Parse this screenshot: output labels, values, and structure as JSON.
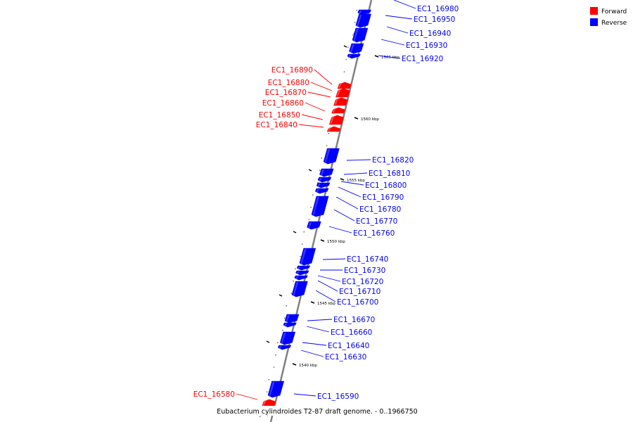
{
  "colors": {
    "forward": "#ff0000",
    "reverse": "#0000ff",
    "axis": "#808080"
  },
  "legend": {
    "forward_label": "Forward",
    "reverse_label": "Reverse"
  },
  "caption": "Eubacterium cylindroides T2-87 draft genome. - 0..1966750",
  "ticks": [
    {
      "label": "1565 kbp",
      "kbp": 1565
    },
    {
      "label": "1560 kbp",
      "kbp": 1560
    },
    {
      "label": "1555 kbp",
      "kbp": 1555
    },
    {
      "label": "1550 kbp",
      "kbp": 1550
    },
    {
      "label": "1545 kbp",
      "kbp": 1545
    },
    {
      "label": "1540 kbp",
      "kbp": 1540
    }
  ],
  "genes": [
    {
      "id": "EC1_16980",
      "strand": "reverse"
    },
    {
      "id": "EC1_16950",
      "strand": "reverse"
    },
    {
      "id": "EC1_16940",
      "strand": "reverse"
    },
    {
      "id": "EC1_16930",
      "strand": "reverse"
    },
    {
      "id": "EC1_16920",
      "strand": "reverse"
    },
    {
      "id": "EC1_16890",
      "strand": "forward"
    },
    {
      "id": "EC1_16880",
      "strand": "forward"
    },
    {
      "id": "EC1_16870",
      "strand": "forward"
    },
    {
      "id": "EC1_16860",
      "strand": "forward"
    },
    {
      "id": "EC1_16850",
      "strand": "forward"
    },
    {
      "id": "EC1_16840",
      "strand": "forward"
    },
    {
      "id": "EC1_16820",
      "strand": "reverse"
    },
    {
      "id": "EC1_16810",
      "strand": "reverse"
    },
    {
      "id": "EC1_16800",
      "strand": "reverse"
    },
    {
      "id": "EC1_16790",
      "strand": "reverse"
    },
    {
      "id": "EC1_16780",
      "strand": "reverse"
    },
    {
      "id": "EC1_16770",
      "strand": "reverse"
    },
    {
      "id": "EC1_16760",
      "strand": "reverse"
    },
    {
      "id": "EC1_16740",
      "strand": "reverse"
    },
    {
      "id": "EC1_16730",
      "strand": "reverse"
    },
    {
      "id": "EC1_16720",
      "strand": "reverse"
    },
    {
      "id": "EC1_16710",
      "strand": "reverse"
    },
    {
      "id": "EC1_16700",
      "strand": "reverse"
    },
    {
      "id": "EC1_16670",
      "strand": "reverse"
    },
    {
      "id": "EC1_16660",
      "strand": "reverse"
    },
    {
      "id": "EC1_16640",
      "strand": "reverse"
    },
    {
      "id": "EC1_16630",
      "strand": "reverse"
    },
    {
      "id": "EC1_16590",
      "strand": "reverse"
    },
    {
      "id": "EC1_16580",
      "strand": "forward"
    }
  ]
}
